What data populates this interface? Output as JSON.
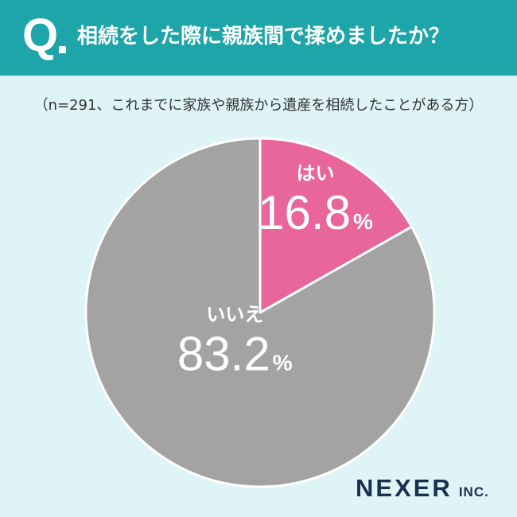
{
  "header": {
    "q_mark": "Q",
    "question": "相続をした際に親族間で揉めましたか？",
    "background_color": "#1ea5a9"
  },
  "note": "（n=291、これまでに家族や親族から遺産を相続したことがある方）",
  "chart_data": {
    "type": "pie",
    "title": "相続をした際に親族間で揉めましたか？",
    "subtitle": "（n=291、これまでに家族や親族から遺産を相続したことがある方）",
    "start": "12 o'clock",
    "direction": "clockwise",
    "slices": [
      {
        "label": "はい",
        "value": 16.8,
        "value_text": "16.8",
        "unit": "%",
        "color": "#e8669b"
      },
      {
        "label": "いいえ",
        "value": 83.2,
        "value_text": "83.2",
        "unit": "%",
        "color": "#a3a3a3"
      }
    ]
  },
  "brand": {
    "name": "NEXER",
    "suffix": "INC."
  }
}
